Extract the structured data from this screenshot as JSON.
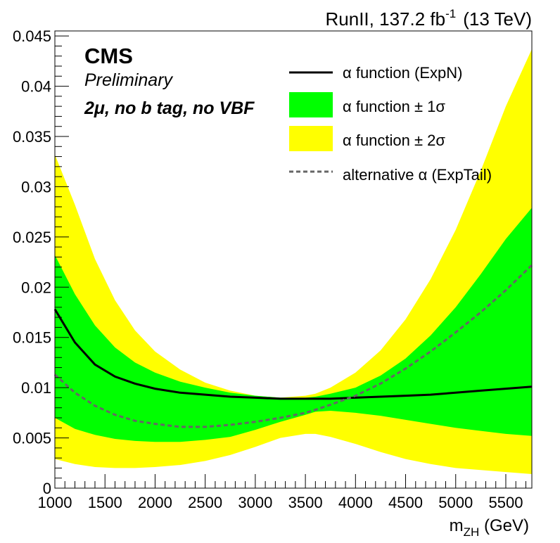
{
  "header": {
    "run_label": "RunII, 137.2 fb",
    "lumi_exponent": "-1",
    "energy": "(13 TeV)"
  },
  "annotations": {
    "experiment": "CMS",
    "status": "Preliminary",
    "category": "2μ, no b tag, no VBF"
  },
  "chart_data": {
    "type": "line",
    "xlabel_main": "m",
    "xlabel_sub": "ZH",
    "xlabel_unit": " (GeV)",
    "ylabel": "",
    "xlim": [
      1000,
      5760
    ],
    "ylim": [
      0,
      0.0455
    ],
    "x_ticks": [
      1000,
      1500,
      2000,
      2500,
      3000,
      3500,
      4000,
      4500,
      5000,
      5500
    ],
    "y_ticks": [
      {
        "value": 0,
        "label": "0"
      },
      {
        "value": 0.005,
        "label": "0.005"
      },
      {
        "value": 0.01,
        "label": "0.01"
      },
      {
        "value": 0.015,
        "label": "0.015"
      },
      {
        "value": 0.02,
        "label": "0.02"
      },
      {
        "value": 0.025,
        "label": "0.025"
      },
      {
        "value": 0.03,
        "label": "0.03"
      },
      {
        "value": 0.035,
        "label": "0.035"
      },
      {
        "value": 0.04,
        "label": "0.04"
      },
      {
        "value": 0.045,
        "label": "0.045"
      }
    ],
    "x": [
      1000,
      1200,
      1400,
      1600,
      1800,
      2000,
      2250,
      2500,
      2750,
      3000,
      3250,
      3500,
      3600,
      3750,
      4000,
      4250,
      4500,
      4750,
      5000,
      5250,
      5500,
      5760
    ],
    "series": [
      {
        "name": "α function (ExpN)",
        "color": "#000000",
        "values": [
          0.0178,
          0.0145,
          0.0123,
          0.0111,
          0.0104,
          0.0099,
          0.0095,
          0.0093,
          0.0091,
          0.009,
          0.0089,
          0.0089,
          0.0089,
          0.0089,
          0.009,
          0.0091,
          0.0092,
          0.0093,
          0.0095,
          0.0097,
          0.0099,
          0.0101
        ]
      },
      {
        "name": "alternative α (ExpTail)",
        "color": "#666666",
        "dashed": true,
        "values": [
          0.0113,
          0.0095,
          0.0082,
          0.0073,
          0.0067,
          0.0064,
          0.0061,
          0.0061,
          0.0063,
          0.0066,
          0.007,
          0.0075,
          0.0078,
          0.0083,
          0.0092,
          0.0104,
          0.0119,
          0.0136,
          0.0155,
          0.0175,
          0.0197,
          0.0222
        ]
      }
    ],
    "bands": [
      {
        "name": "α function ± 2σ",
        "color": "#ffff00",
        "lower": [
          0.0029,
          0.0024,
          0.0021,
          0.002,
          0.002,
          0.0021,
          0.0023,
          0.0027,
          0.0033,
          0.0041,
          0.005,
          0.0054,
          0.0054,
          0.0051,
          0.0044,
          0.0036,
          0.0029,
          0.0024,
          0.002,
          0.0018,
          0.0016,
          0.0014
        ],
        "upper": [
          0.0332,
          0.0282,
          0.0228,
          0.0187,
          0.0157,
          0.0136,
          0.0118,
          0.0105,
          0.0097,
          0.0092,
          0.009,
          0.0092,
          0.0094,
          0.01,
          0.0115,
          0.0137,
          0.0168,
          0.0208,
          0.0257,
          0.0316,
          0.038,
          0.0437
        ]
      },
      {
        "name": "α function ± 1σ",
        "color": "#00ff00",
        "lower": [
          0.007,
          0.0059,
          0.0053,
          0.0049,
          0.0047,
          0.0046,
          0.0046,
          0.0048,
          0.0051,
          0.0058,
          0.0066,
          0.0073,
          0.0076,
          0.0077,
          0.0075,
          0.0072,
          0.0068,
          0.0064,
          0.006,
          0.0057,
          0.0054,
          0.0052
        ],
        "upper": [
          0.0232,
          0.0193,
          0.0162,
          0.014,
          0.0125,
          0.0115,
          0.0106,
          0.01,
          0.0095,
          0.0092,
          0.009,
          0.009,
          0.0091,
          0.0094,
          0.01,
          0.0112,
          0.0129,
          0.0152,
          0.018,
          0.0213,
          0.0248,
          0.0279
        ]
      }
    ],
    "legend": {
      "position": "top-right",
      "entries": [
        {
          "label": "α function (ExpN)",
          "style": "line",
          "color": "#000000"
        },
        {
          "label": "α function ± 1σ",
          "style": "fill",
          "color": "#00ff00"
        },
        {
          "label": "α function ± 2σ",
          "style": "fill",
          "color": "#ffff00"
        },
        {
          "label": "alternative α (ExpTail)",
          "style": "dashed",
          "color": "#666666"
        }
      ]
    }
  }
}
